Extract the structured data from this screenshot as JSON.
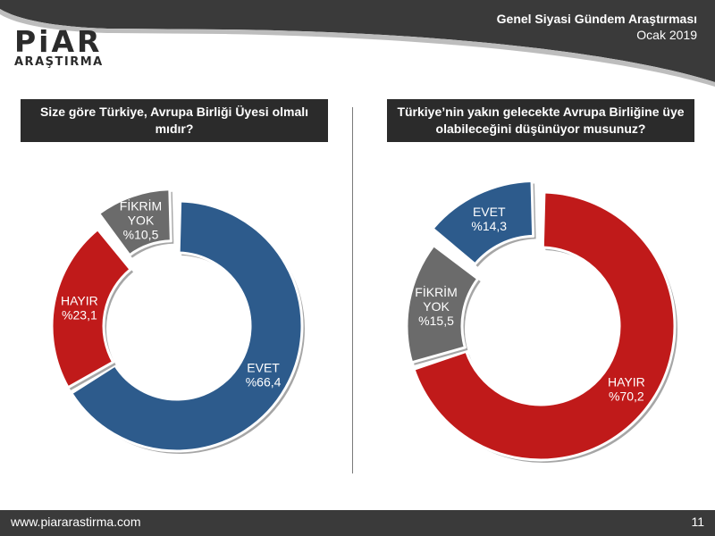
{
  "header": {
    "logo_main": "PiAR",
    "logo_sub": "ARAŞTIRMA",
    "title": "Genel Siyasi Gündem Araştırması",
    "date": "Ocak 2019"
  },
  "colors": {
    "blue": "#2d5b8c",
    "red": "#c01a1a",
    "gray": "#6b6b6b",
    "dark": "#2b2b2b"
  },
  "chart_data": [
    {
      "type": "pie",
      "title": "Size göre Türkiye,  Avrupa  Birliği Üyesi olmalı mıdır?",
      "series": [
        {
          "label": "EVET",
          "value": 66.4,
          "display": "%66,4",
          "color": "#2d5b8c"
        },
        {
          "label": "HAYIR",
          "value": 23.1,
          "display": "%23,1",
          "color": "#c01a1a"
        },
        {
          "label": "FİKRİM YOK",
          "value": 10.5,
          "display": "%10,5",
          "color": "#6b6b6b"
        }
      ]
    },
    {
      "type": "pie",
      "title": "Türkiye’nin yakın gelecekte Avrupa  Birliğine üye olabileceğini düşünüyor musunuz?",
      "series": [
        {
          "label": "HAYIR",
          "value": 70.2,
          "display": "%70,2",
          "color": "#c01a1a"
        },
        {
          "label": "FİKRİM YOK",
          "value": 15.5,
          "display": "%15,5",
          "color": "#6b6b6b"
        },
        {
          "label": "EVET",
          "value": 14.3,
          "display": "%14,3",
          "color": "#2d5b8c"
        }
      ]
    }
  ],
  "footer": {
    "url": "www.piararastirma.com",
    "page": "11"
  }
}
